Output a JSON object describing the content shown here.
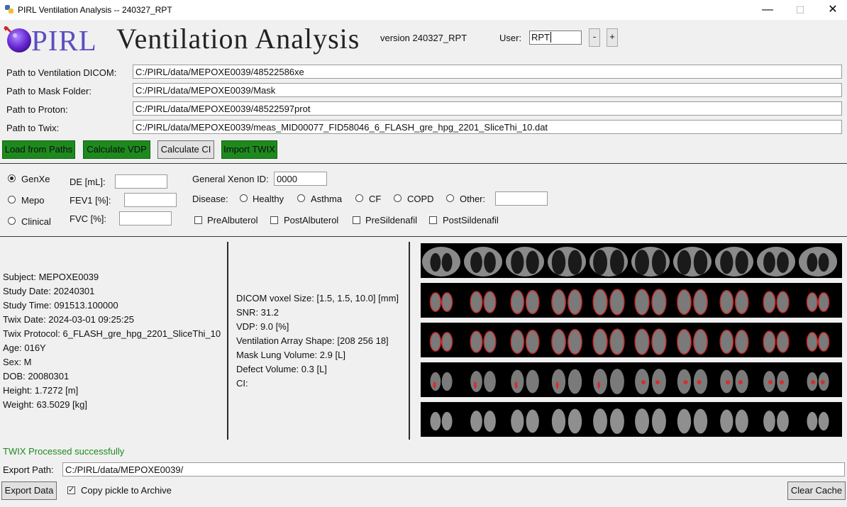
{
  "window": {
    "title": "PIRL Ventilation Analysis -- 240327_RPT",
    "minimize": "—",
    "maximize": "☐",
    "close": "✕"
  },
  "header": {
    "logo_text": "PIRL",
    "app_title": "Ventilation Analysis",
    "version": "version 240327_RPT",
    "user_label": "User:",
    "user_value": "RPT",
    "minus": "-",
    "plus": "+"
  },
  "paths": [
    {
      "label": "Path to Ventilation DICOM:",
      "value": "C:/PIRL/data/MEPOXE0039/48522586xe"
    },
    {
      "label": "Path to Mask Folder:",
      "value": "C:/PIRL/data/MEPOXE0039/Mask"
    },
    {
      "label": "Path to Proton:",
      "value": "C:/PIRL/data/MEPOXE0039/48522597prot"
    },
    {
      "label": "Path to Twix:",
      "value": "C:/PIRL/data/MEPOXE0039/meas_MID00077_FID58046_6_FLASH_gre_hpg_2201_SliceThi_10.dat"
    }
  ],
  "actions": {
    "load": "Load from Paths",
    "vdp": "Calculate VDP",
    "ci": "Calculate CI",
    "twix": "Import TWIX",
    "green": "#1e8a1e"
  },
  "form": {
    "study_types": [
      "GenXe",
      "Mepo",
      "Clinical"
    ],
    "selected_study": "GenXe",
    "de_label": "DE [mL]:",
    "de_value": "",
    "fev1_label": "FEV1 [%]:",
    "fev1_value": "",
    "fvc_label": "FVC [%]:",
    "fvc_value": "",
    "xenon_id_label": "General Xenon ID:",
    "xenon_id_value": "0000",
    "disease_label": "Disease:",
    "diseases": [
      "Healthy",
      "Asthma",
      "CF",
      "COPD",
      "Other:"
    ],
    "other_value": "",
    "treatments": [
      "PreAlbuterol",
      "PostAlbuterol",
      "PreSildenafil",
      "PostSildenafil"
    ]
  },
  "subject_info": [
    "Subject: MEPOXE0039",
    "Study Date: 20240301",
    "Study Time: 091513.100000",
    "Twix Date: 2024-03-01 09:25:25",
    "Twix Protocol: 6_FLASH_gre_hpg_2201_SliceThi_10",
    "Age: 016Y",
    "Sex: M",
    "DOB: 20080301",
    "Height: 1.7272 [m]",
    "Weight: 63.5029 [kg]"
  ],
  "analysis_info": [
    "DICOM voxel Size: [1.5, 1.5, 10.0] [mm]",
    "SNR: 31.2",
    "VDP: 9.0 [%]",
    "Ventilation Array Shape: [208 256  18]",
    "Mask Lung Volume: 2.9 [L]",
    "Defect Volume: 0.3 [L]",
    "CI:"
  ],
  "image_strips": [
    "proton-strip",
    "mask-overlay-strip",
    "ventilation-mask-strip",
    "defect-overlay-strip",
    "ventilation-strip"
  ],
  "status": "TWIX Processed successfully",
  "export": {
    "label": "Export Path:",
    "value": "C:/PIRL/data/MEPOXE0039/",
    "button": "Export Data",
    "copy_pickle": "Copy pickle to Archive",
    "copy_checked": true,
    "clear_cache": "Clear Cache"
  }
}
